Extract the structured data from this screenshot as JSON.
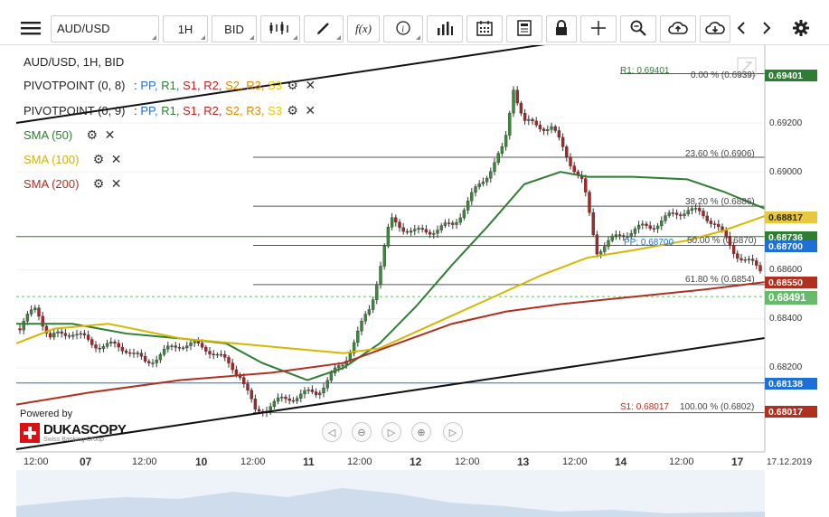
{
  "toolbar": {
    "symbol": "AUD/USD",
    "timeframe": "1H",
    "price_type": "BID",
    "fx_label": "f(x)"
  },
  "legend": {
    "title": "AUD/USD, 1H, BID",
    "pivot1": "PIVOTPOINT (0, 8)",
    "pivot2": "PIVOTPOINT (0, 9)",
    "pp": "PP,",
    "r1": "R1,",
    "s1": "S1,",
    "r2": "R2,",
    "s2": "S2,",
    "r3": "R3,",
    "s3": "S3",
    "sma50": "SMA (50)",
    "sma100": "SMA (100)",
    "sma200": "SMA (200)"
  },
  "annotations": {
    "r1": "R1: 0.69401",
    "s1": "S1: 0.68017",
    "fib0": "0.00 % (0.6939)",
    "fib236": "23.60 % (0.6906)",
    "fib382": "38.20 % (0.6886)",
    "fib50": "50.00 % (0.6870)",
    "fib618": "61.80 % (0.6854)",
    "fib100": "100.00 % (0.6802)",
    "pp": "PP: 0.68700"
  },
  "yaxis": {
    "ticks": [
      "0.69200",
      "0.69000",
      "0.68600",
      "0.68400",
      "0.68200"
    ],
    "tags": [
      {
        "value": "0.69401",
        "color": "#2e7d32",
        "text_color": "#ffffff"
      },
      {
        "value": "0.68817",
        "color": "#e8c840",
        "text_color": "#222222"
      },
      {
        "value": "0.68736",
        "color": "#2e7d32",
        "text_color": "#ffffff"
      },
      {
        "value": "0.68700",
        "color": "#1e6fd6",
        "text_color": "#ffffff"
      },
      {
        "value": "0.68550",
        "color": "#b03020",
        "text_color": "#ffffff"
      },
      {
        "value": "0.68491",
        "color": "#66bb6a",
        "text_color": "#ffffff"
      },
      {
        "value": "0.68138",
        "color": "#1e6fd6",
        "text_color": "#ffffff"
      },
      {
        "value": "0.68017",
        "color": "#b03020",
        "text_color": "#ffffff"
      }
    ]
  },
  "xaxis": {
    "labels": [
      "12:00",
      "07",
      "12:00",
      "10",
      "12:00",
      "11",
      "12:00",
      "12",
      "12:00",
      "13",
      "12:00",
      "14",
      "12:00",
      "17"
    ],
    "date": "17.12.2019"
  },
  "branding": {
    "powered": "Powered by",
    "name": "DUKASCOPY",
    "sub": "Swiss Banking Group"
  }
}
